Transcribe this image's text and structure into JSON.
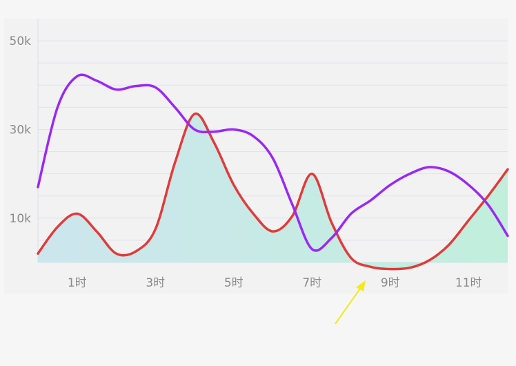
{
  "chart_data": {
    "type": "line",
    "x_tick_labels": [
      "1时",
      "3时",
      "5时",
      "7时",
      "9时",
      "11时"
    ],
    "y_tick_labels": [
      "50k",
      "30k",
      "10k"
    ],
    "y_ticks": [
      50000,
      30000,
      10000
    ],
    "ylim": [
      0,
      55000
    ],
    "xlim": [
      0,
      12
    ],
    "grid": true,
    "series": [
      {
        "color": "#9a28f5",
        "x": [
          0,
          0.5,
          1.0,
          1.5,
          2.0,
          2.5,
          3.0,
          3.5,
          4.0,
          4.5,
          5.0,
          5.5,
          6.0,
          6.5,
          7.0,
          7.5,
          8.0,
          8.5,
          9.0,
          9.5,
          10.0,
          10.5,
          11.0,
          11.5,
          12.0
        ],
        "values": [
          17000,
          35000,
          42000,
          41000,
          39000,
          39800,
          39500,
          35000,
          30000,
          29500,
          30000,
          28500,
          23500,
          13000,
          3000,
          5500,
          11000,
          14000,
          17500,
          20000,
          21500,
          20500,
          17500,
          13000,
          6000
        ]
      },
      {
        "color": "#e23a3a",
        "x": [
          0,
          0.5,
          1.0,
          1.5,
          2.0,
          2.5,
          3.0,
          3.5,
          4.0,
          4.5,
          5.0,
          5.5,
          6.0,
          6.5,
          7.0,
          7.5,
          8.0,
          8.5,
          9.0,
          9.5,
          10.0,
          10.5,
          11.0,
          11.5,
          12.0
        ],
        "values": [
          2000,
          8000,
          11000,
          7000,
          2000,
          2500,
          7500,
          22500,
          33500,
          27000,
          17500,
          11000,
          7000,
          10500,
          20000,
          9000,
          1000,
          -1000,
          -1500,
          -1200,
          500,
          4000,
          9500,
          15000,
          21000
        ]
      }
    ]
  },
  "colors": {
    "fill_left": "#cbe5ee",
    "fill_right": "#bfeedb",
    "arrow": "#f2ea1a",
    "plot_bg": "#f2f2f3",
    "grid": "#e2e2ec"
  }
}
